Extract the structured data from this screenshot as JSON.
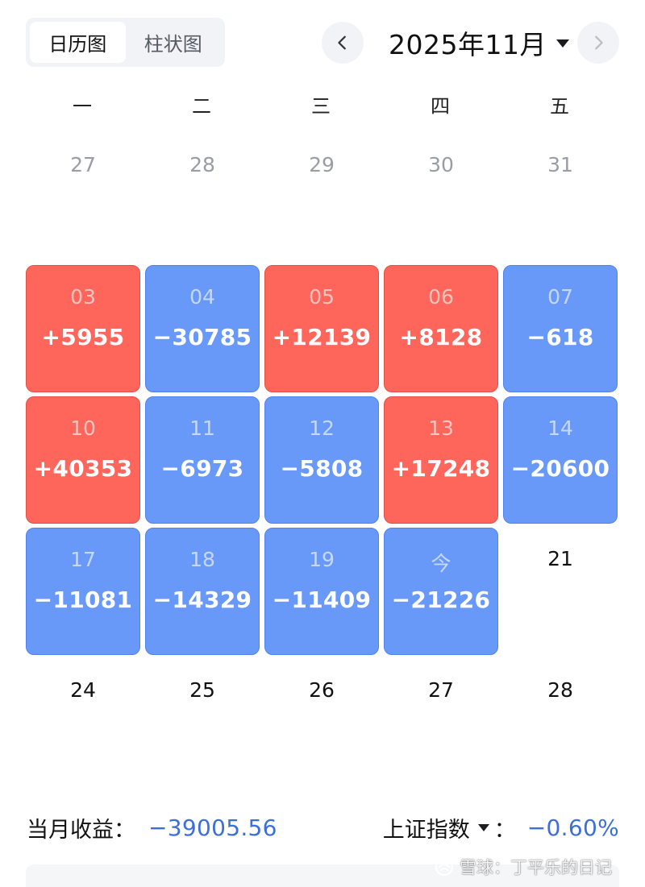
{
  "view_toggle": {
    "calendar": "日历图",
    "bar": "柱状图",
    "active": "calendar"
  },
  "header": {
    "month_title": "2025年11月"
  },
  "weekdays": [
    "一",
    "二",
    "三",
    "四",
    "五"
  ],
  "calendar": {
    "rows": [
      [
        {
          "day": "27",
          "pnl": "",
          "state": "muted"
        },
        {
          "day": "28",
          "pnl": "",
          "state": "muted"
        },
        {
          "day": "29",
          "pnl": "",
          "state": "muted"
        },
        {
          "day": "30",
          "pnl": "",
          "state": "muted"
        },
        {
          "day": "31",
          "pnl": "",
          "state": "muted"
        }
      ],
      [
        {
          "day": "03",
          "pnl": "+5955",
          "state": "gain"
        },
        {
          "day": "04",
          "pnl": "−30785",
          "state": "loss"
        },
        {
          "day": "05",
          "pnl": "+12139",
          "state": "gain"
        },
        {
          "day": "06",
          "pnl": "+8128",
          "state": "gain"
        },
        {
          "day": "07",
          "pnl": "−618",
          "state": "loss"
        }
      ],
      [
        {
          "day": "10",
          "pnl": "+40353",
          "state": "gain"
        },
        {
          "day": "11",
          "pnl": "−6973",
          "state": "loss"
        },
        {
          "day": "12",
          "pnl": "−5808",
          "state": "loss"
        },
        {
          "day": "13",
          "pnl": "+17248",
          "state": "gain"
        },
        {
          "day": "14",
          "pnl": "−20600",
          "state": "loss"
        }
      ],
      [
        {
          "day": "17",
          "pnl": "−11081",
          "state": "loss"
        },
        {
          "day": "18",
          "pnl": "−14329",
          "state": "loss"
        },
        {
          "day": "19",
          "pnl": "−11409",
          "state": "loss"
        },
        {
          "day": "今",
          "pnl": "−21226",
          "state": "loss"
        },
        {
          "day": "21",
          "pnl": "",
          "state": "future"
        }
      ],
      [
        {
          "day": "24",
          "pnl": "",
          "state": "future"
        },
        {
          "day": "25",
          "pnl": "",
          "state": "future"
        },
        {
          "day": "26",
          "pnl": "",
          "state": "future"
        },
        {
          "day": "27",
          "pnl": "",
          "state": "future"
        },
        {
          "day": "28",
          "pnl": "",
          "state": "future"
        }
      ]
    ]
  },
  "summary": {
    "label": "当月收益：",
    "value": "−39005.56"
  },
  "index": {
    "label": "上证指数",
    "colon": "：",
    "value": "−0.60%"
  },
  "watermark": {
    "text": "雪球：丁平乐的日记"
  },
  "colors": {
    "gain": "#fe655b",
    "loss": "#6899f8",
    "accent": "#3d6fd8"
  },
  "icons": {
    "prev": "chevron-left-icon",
    "next": "chevron-right-icon",
    "month_dropdown": "caret-down-icon"
  }
}
